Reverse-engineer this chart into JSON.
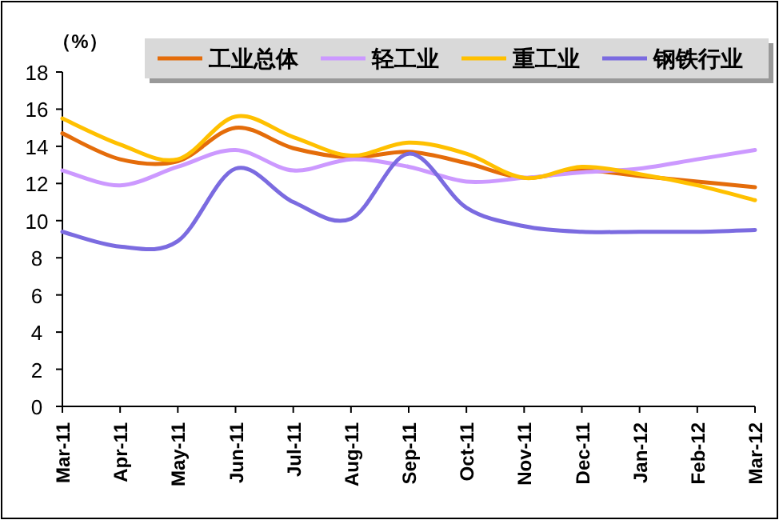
{
  "chart_data": {
    "type": "line",
    "ylabel": "（%）",
    "categories": [
      "Mar-11",
      "Apr-11",
      "May-11",
      "Jun-11",
      "Jul-11",
      "Aug-11",
      "Sep-11",
      "Oct-11",
      "Nov-11",
      "Dec-11",
      "Jan-12",
      "Feb-12",
      "Mar-12"
    ],
    "series": [
      {
        "name": "工业总体",
        "color": "#e46c0a",
        "values": [
          14.7,
          13.3,
          13.2,
          15.0,
          13.9,
          13.4,
          13.7,
          13.1,
          12.3,
          12.7,
          12.4,
          12.1,
          11.8
        ]
      },
      {
        "name": "轻工业",
        "color": "#cc99ff",
        "values": [
          12.7,
          11.9,
          12.9,
          13.8,
          12.7,
          13.3,
          12.9,
          12.1,
          12.3,
          12.6,
          12.8,
          13.3,
          13.8
        ]
      },
      {
        "name": "重工业",
        "color": "#ffc000",
        "values": [
          15.5,
          14.1,
          13.3,
          15.6,
          14.5,
          13.5,
          14.2,
          13.6,
          12.3,
          12.9,
          12.5,
          11.9,
          11.1
        ]
      },
      {
        "name": "钢铁行业",
        "color": "#7b6be0",
        "values": [
          9.4,
          8.6,
          8.9,
          12.8,
          11.0,
          10.1,
          13.6,
          10.7,
          9.7,
          9.4,
          9.4,
          9.4,
          9.5
        ]
      }
    ],
    "ylim": [
      0,
      18
    ],
    "yticks": [
      0,
      2,
      4,
      6,
      8,
      10,
      12,
      14,
      16,
      18
    ],
    "legend": "top"
  }
}
